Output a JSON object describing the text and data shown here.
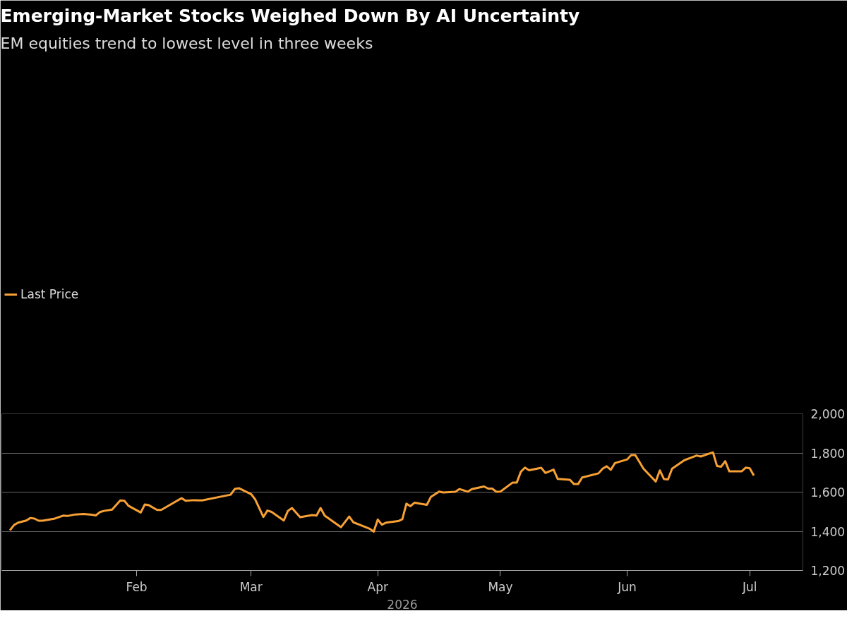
{
  "chart_data": {
    "type": "line",
    "title": "Emerging-Market Stocks Weighed Down By AI Uncertainty",
    "subtitle": "EM equities trend to lowest level in three weeks",
    "xlabel": "2026",
    "x": [
      "2026-01-01",
      "2026-01-02",
      "2026-01-03",
      "2026-01-05",
      "2026-01-06",
      "2026-01-07",
      "2026-01-08",
      "2026-01-09",
      "2026-01-12",
      "2026-01-14",
      "2026-01-15",
      "2026-01-17",
      "2026-01-19",
      "2026-01-21",
      "2026-01-22",
      "2026-01-23",
      "2026-01-24",
      "2026-01-26",
      "2026-01-28",
      "2026-01-29",
      "2026-01-30",
      "2026-02-02",
      "2026-02-03",
      "2026-02-04",
      "2026-02-06",
      "2026-02-07",
      "2026-02-12",
      "2026-02-13",
      "2026-02-15",
      "2026-02-17",
      "2026-02-24",
      "2026-02-25",
      "2026-02-26",
      "2026-03-01",
      "2026-03-02",
      "2026-03-04",
      "2026-03-05",
      "2026-03-06",
      "2026-03-09",
      "2026-03-10",
      "2026-03-11",
      "2026-03-13",
      "2026-03-16",
      "2026-03-17",
      "2026-03-18",
      "2026-03-19",
      "2026-03-23",
      "2026-03-25",
      "2026-03-26",
      "2026-03-30",
      "2026-03-31",
      "2026-04-01",
      "2026-04-02",
      "2026-04-03",
      "2026-04-06",
      "2026-04-07",
      "2026-04-08",
      "2026-04-09",
      "2026-04-10",
      "2026-04-13",
      "2026-04-14",
      "2026-04-16",
      "2026-04-17",
      "2026-04-20",
      "2026-04-21",
      "2026-04-23",
      "2026-04-24",
      "2026-04-27",
      "2026-04-28",
      "2026-04-29",
      "2026-04-30",
      "2026-05-01",
      "2026-05-04",
      "2026-05-05",
      "2026-05-06",
      "2026-05-07",
      "2026-05-08",
      "2026-05-11",
      "2026-05-12",
      "2026-05-14",
      "2026-05-15",
      "2026-05-18",
      "2026-05-19",
      "2026-05-20",
      "2026-05-21",
      "2026-05-25",
      "2026-05-26",
      "2026-05-27",
      "2026-05-28",
      "2026-05-29",
      "2026-06-01",
      "2026-06-02",
      "2026-06-03",
      "2026-06-05",
      "2026-06-08",
      "2026-06-09",
      "2026-06-10",
      "2026-06-11",
      "2026-06-12",
      "2026-06-15",
      "2026-06-17",
      "2026-06-18",
      "2026-06-19",
      "2026-06-22",
      "2026-06-23",
      "2026-06-24",
      "2026-06-25",
      "2026-06-26",
      "2026-06-29",
      "2026-06-30",
      "2026-07-01",
      "2026-07-02"
    ],
    "series": [
      {
        "name": "Last Price",
        "color": "#f7a035",
        "values": [
          1405,
          1432,
          1444,
          1455,
          1468,
          1465,
          1454,
          1454,
          1465,
          1480,
          1478,
          1486,
          1488,
          1485,
          1481,
          1498,
          1504,
          1511,
          1558,
          1556,
          1530,
          1496,
          1537,
          1533,
          1509,
          1509,
          1569,
          1556,
          1559,
          1558,
          1587,
          1616,
          1620,
          1590,
          1563,
          1473,
          1506,
          1499,
          1455,
          1504,
          1519,
          1472,
          1483,
          1480,
          1519,
          1480,
          1421,
          1475,
          1446,
          1413,
          1398,
          1460,
          1434,
          1444,
          1452,
          1462,
          1541,
          1528,
          1546,
          1535,
          1576,
          1603,
          1598,
          1602,
          1616,
          1602,
          1615,
          1629,
          1618,
          1618,
          1602,
          1603,
          1649,
          1649,
          1704,
          1725,
          1712,
          1724,
          1698,
          1715,
          1668,
          1663,
          1641,
          1641,
          1675,
          1696,
          1720,
          1732,
          1714,
          1748,
          1767,
          1789,
          1789,
          1720,
          1654,
          1711,
          1667,
          1665,
          1720,
          1763,
          1779,
          1787,
          1782,
          1803,
          1733,
          1730,
          1758,
          1706,
          1706,
          1725,
          1722,
          1685
        ]
      }
    ],
    "xlim": [
      "2025-12-30",
      "2026-07-14"
    ],
    "xticks": [
      {
        "value": "2026-02-01",
        "label": "Feb"
      },
      {
        "value": "2026-03-01",
        "label": "Mar"
      },
      {
        "value": "2026-04-01",
        "label": "Apr"
      },
      {
        "value": "2026-05-01",
        "label": "May"
      },
      {
        "value": "2026-06-01",
        "label": "Jun"
      },
      {
        "value": "2026-07-01",
        "label": "Jul"
      }
    ],
    "ylim": [
      1200,
      2000
    ],
    "yticks": [
      {
        "value": 1200,
        "label": "1,200"
      },
      {
        "value": 1400,
        "label": "1,400"
      },
      {
        "value": 1600,
        "label": "1,600"
      },
      {
        "value": 1800,
        "label": "1,800"
      },
      {
        "value": 2000,
        "label": "2,000"
      }
    ],
    "grid": "y",
    "legend": "top left",
    "line_style": "solid",
    "marker": "none"
  }
}
